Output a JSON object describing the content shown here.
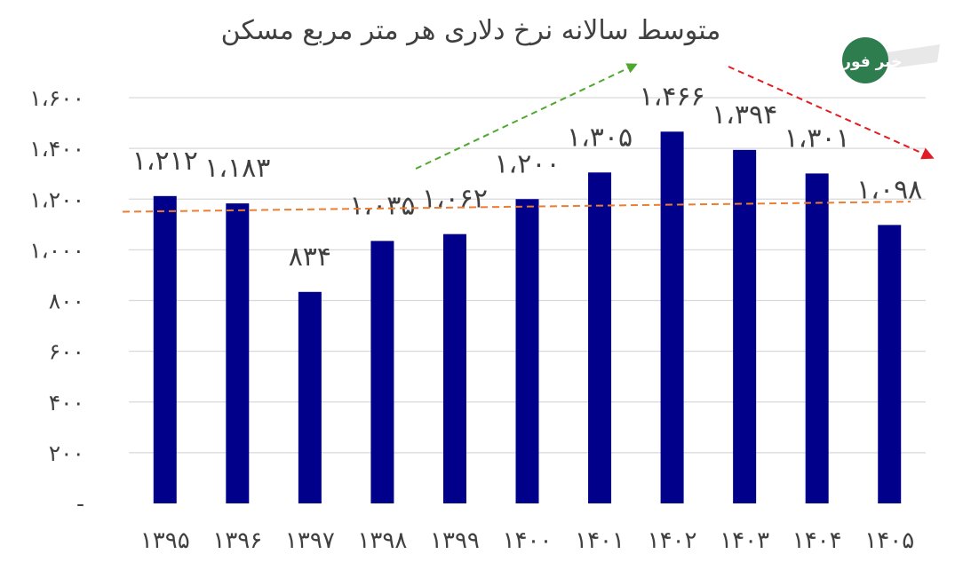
{
  "chart_data": {
    "type": "bar",
    "title": "متوسط سالانه نرخ دلاری هر متر مربع مسکن",
    "categories": [
      "۱۳۹۵",
      "۱۳۹۶",
      "۱۳۹۷",
      "۱۳۹۸",
      "۱۳۹۹",
      "۱۴۰۰",
      "۱۴۰۱",
      "۱۴۰۲",
      "۱۴۰۳",
      "۱۴۰۴",
      "۱۴۰۵"
    ],
    "values": [
      1212,
      1183,
      834,
      1035,
      1062,
      1200,
      1305,
      1466,
      1394,
      1301,
      1098
    ],
    "value_labels": [
      "۱،۲۱۲",
      "۱،۱۸۳",
      "۸۳۴",
      "۱،۰۳۵",
      "۱،۰۶۲",
      "۱،۲۰۰",
      "۱،۳۰۵",
      "۱،۴۶۶",
      "۱،۳۹۴",
      "۱،۳۰۱",
      "۱،۰۹۸"
    ],
    "y_tick_values": [
      0,
      200,
      400,
      600,
      800,
      1000,
      1200,
      1400,
      1600
    ],
    "y_tick_labels": [
      "-",
      "۲۰۰",
      "۴۰۰",
      "۶۰۰",
      "۸۰۰",
      "۱،۰۰۰",
      "۱،۲۰۰",
      "۱،۴۰۰",
      "۱،۶۰۰"
    ],
    "ylim": [
      0,
      1600
    ],
    "grid": true,
    "trendline": {
      "style": "dashed",
      "color": "#ED7D31",
      "start_value": 1150,
      "end_value": 1190
    },
    "arrows": [
      {
        "color": "#4EA72E",
        "direction": "up-right"
      },
      {
        "color": "#E31B23",
        "direction": "down-right"
      }
    ],
    "bar_color": "#00008B",
    "grid_color": "#D9D9D9"
  },
  "logo": {
    "text": "خبر فوری",
    "color": "#2E7D4F"
  }
}
